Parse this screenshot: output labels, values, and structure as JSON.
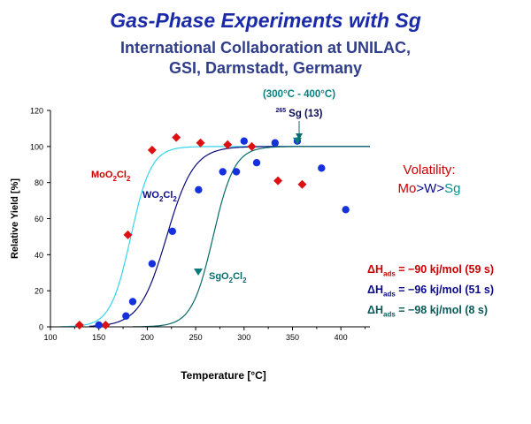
{
  "header": {
    "title": "Gas-Phase Experiments with Sg",
    "subtitle_line1": "International Collaboration at UNILAC,",
    "subtitle_line2": "GSI, Darmstadt, Germany"
  },
  "volatility": {
    "title": "Volatility:",
    "mo": "Mo",
    "gt1": ">",
    "w": "W",
    "gt2": ">",
    "sg": "Sg"
  },
  "enthalpies": [
    {
      "symbol": "ΔH",
      "sub": "ads",
      "text": " = −90 kj/mol (59 s)"
    },
    {
      "symbol": "ΔH",
      "sub": "ads",
      "text": " = −96 kj/mol (51 s)"
    },
    {
      "symbol": "ΔH",
      "sub": "ads",
      "text": " = −98 kj/mol (8 s)"
    }
  ],
  "annotation": {
    "line1": "(300°C - 400°C)",
    "line2_sup": "265",
    "line2": "Sg (13)"
  },
  "chart_data": {
    "type": "scatter",
    "xlabel": "Temperature [°C]",
    "ylabel": "Relative Yield [%]",
    "xlim": [
      100,
      430
    ],
    "ylim": [
      0,
      120
    ],
    "xticks": [
      100,
      150,
      200,
      250,
      300,
      350,
      400
    ],
    "yticks": [
      0,
      20,
      40,
      60,
      80,
      100,
      120
    ],
    "grid": false,
    "series": [
      {
        "name": "MoO2Cl2",
        "label_main": "MoO",
        "label_sub1": "2",
        "label_mid": "Cl",
        "label_sub2": "2",
        "color": "#dd1111",
        "curve_color": "#33d6ee",
        "marker": "diamond",
        "points": [
          [
            130,
            1
          ],
          [
            157,
            1
          ],
          [
            180,
            51
          ],
          [
            205,
            98
          ],
          [
            230,
            105
          ],
          [
            255,
            102
          ],
          [
            283,
            101
          ],
          [
            308,
            100
          ],
          [
            335,
            81
          ],
          [
            360,
            79
          ]
        ],
        "curve": {
          "t50": 183,
          "width": 10.5
        }
      },
      {
        "name": "WO2Cl2",
        "label_main": "WO",
        "label_sub1": "2",
        "label_mid": "Cl",
        "label_sub2": "2",
        "color": "#1530dd",
        "curve_color": "#0a0a7a",
        "marker": "circle",
        "points": [
          [
            150,
            1
          ],
          [
            178,
            6
          ],
          [
            185,
            14
          ],
          [
            205,
            35
          ],
          [
            226,
            53
          ],
          [
            253,
            76
          ],
          [
            278,
            86
          ],
          [
            292,
            86
          ],
          [
            300,
            103
          ],
          [
            313,
            91
          ],
          [
            332,
            102
          ],
          [
            355,
            103
          ],
          [
            380,
            88
          ],
          [
            405,
            65
          ]
        ],
        "curve": {
          "t50": 220,
          "width": 14
        }
      },
      {
        "name": "SgO2Cl2",
        "label_main": "SgO",
        "label_sub1": "2",
        "label_mid": "Cl",
        "label_sub2": "2",
        "color": "#0a7a7a",
        "curve_color": "#0a6a6a",
        "marker": "triangle-down",
        "points": [
          [
            355,
            103
          ]
        ],
        "curve": {
          "t50": 268,
          "width": 11
        }
      }
    ]
  }
}
